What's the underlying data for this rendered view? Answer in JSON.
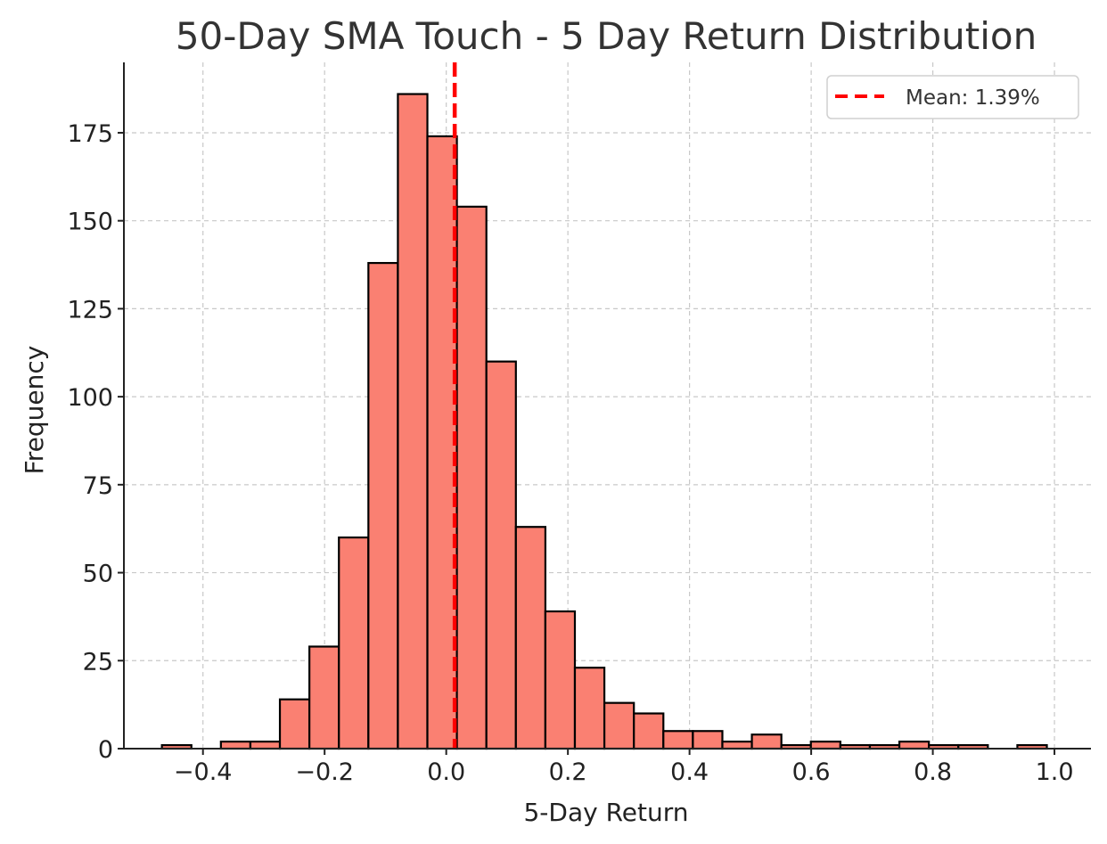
{
  "chart_data": {
    "type": "bar",
    "title": "50-Day SMA Touch - 5 Day Return Distribution",
    "xlabel": "5-Day Return",
    "ylabel": "Frequency",
    "xlim": [
      -0.53,
      1.06
    ],
    "ylim": [
      0,
      195
    ],
    "grid": true,
    "bin_width": 0.0485,
    "bins": [
      {
        "left": -0.4675,
        "count": 1
      },
      {
        "left": -0.419,
        "count": 0
      },
      {
        "left": -0.3705,
        "count": 2
      },
      {
        "left": -0.322,
        "count": 2
      },
      {
        "left": -0.2735,
        "count": 14
      },
      {
        "left": -0.225,
        "count": 29
      },
      {
        "left": -0.1765,
        "count": 60
      },
      {
        "left": -0.128,
        "count": 138
      },
      {
        "left": -0.0795,
        "count": 186
      },
      {
        "left": -0.031,
        "count": 174
      },
      {
        "left": 0.0175,
        "count": 154
      },
      {
        "left": 0.066,
        "count": 110
      },
      {
        "left": 0.1145,
        "count": 63
      },
      {
        "left": 0.163,
        "count": 39
      },
      {
        "left": 0.2115,
        "count": 23
      },
      {
        "left": 0.26,
        "count": 13
      },
      {
        "left": 0.3085,
        "count": 10
      },
      {
        "left": 0.357,
        "count": 5
      },
      {
        "left": 0.4055,
        "count": 5
      },
      {
        "left": 0.454,
        "count": 2
      },
      {
        "left": 0.5025,
        "count": 4
      },
      {
        "left": 0.551,
        "count": 1
      },
      {
        "left": 0.5995,
        "count": 2
      },
      {
        "left": 0.648,
        "count": 1
      },
      {
        "left": 0.6965,
        "count": 1
      },
      {
        "left": 0.745,
        "count": 2
      },
      {
        "left": 0.7935,
        "count": 1
      },
      {
        "left": 0.842,
        "count": 1
      },
      {
        "left": 0.8905,
        "count": 0
      },
      {
        "left": 0.939,
        "count": 1
      }
    ],
    "x_ticks": [
      {
        "value": -0.4,
        "label": "−0.4"
      },
      {
        "value": -0.2,
        "label": "−0.2"
      },
      {
        "value": 0.0,
        "label": "0.0"
      },
      {
        "value": 0.2,
        "label": "0.2"
      },
      {
        "value": 0.4,
        "label": "0.4"
      },
      {
        "value": 0.6,
        "label": "0.6"
      },
      {
        "value": 0.8,
        "label": "0.8"
      },
      {
        "value": 1.0,
        "label": "1.0"
      }
    ],
    "y_ticks": [
      {
        "value": 0,
        "label": "0"
      },
      {
        "value": 25,
        "label": "25"
      },
      {
        "value": 50,
        "label": "50"
      },
      {
        "value": 75,
        "label": "75"
      },
      {
        "value": 100,
        "label": "100"
      },
      {
        "value": 125,
        "label": "125"
      },
      {
        "value": 150,
        "label": "150"
      },
      {
        "value": 175,
        "label": "175"
      }
    ],
    "mean_line": {
      "value": 0.0139,
      "label": "Mean: 1.39%"
    },
    "legend_position": "top-right",
    "colors": {
      "bar_fill": "#FA8072",
      "bar_edge": "#000000",
      "mean_line": "#FF0000"
    }
  }
}
